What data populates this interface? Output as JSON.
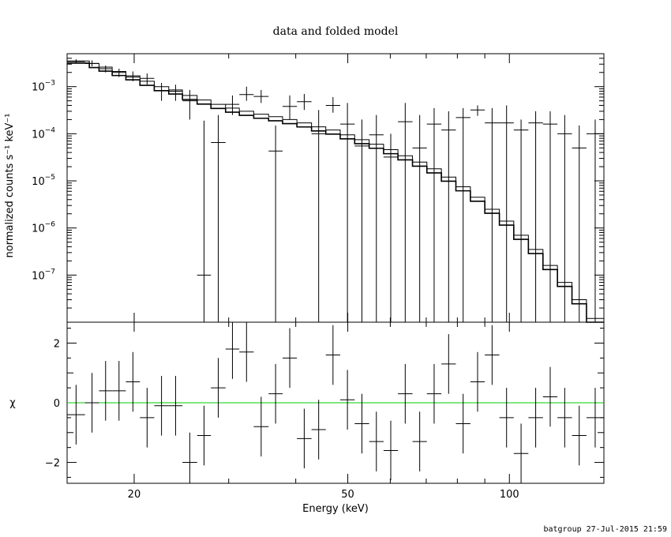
{
  "chart_data": [
    {
      "type": "scatter",
      "title": "data and folded model",
      "xlabel": "Energy (keV)",
      "ylabel": "normalized counts s⁻¹ keV⁻¹",
      "xscale": "log",
      "yscale": "log",
      "xlim": [
        15,
        150
      ],
      "ylim": [
        1e-08,
        0.005
      ],
      "x_ticks": [
        20,
        50,
        100
      ],
      "x_tick_labels": [
        "20",
        "50",
        "100"
      ],
      "y_ticks": [
        {
          "mant": "10",
          "exp": "−3",
          "value": 0.001
        },
        {
          "mant": "10",
          "exp": "−4",
          "value": 0.0001
        },
        {
          "mant": "10",
          "exp": "−5",
          "value": 1e-05
        },
        {
          "mant": "10",
          "exp": "−6",
          "value": 1e-06
        },
        {
          "mant": "10",
          "exp": "−7",
          "value": 1e-07
        }
      ],
      "series": [
        {
          "role": "data",
          "points": [
            [
              15.0,
              16.2,
              0.0034,
              0.0031,
              0.0038
            ],
            [
              16.2,
              17.2,
              0.0031,
              0.0027,
              0.0036
            ],
            [
              17.2,
              18.2,
              0.0024,
              0.002,
              0.0028
            ],
            [
              18.2,
              19.3,
              0.002,
              0.0016,
              0.0024
            ],
            [
              19.3,
              20.5,
              0.0016,
              0.0013,
              0.0021
            ],
            [
              20.5,
              21.8,
              0.0015,
              0.0011,
              0.0019
            ],
            [
              21.8,
              23.2,
              0.00082,
              0.0005,
              0.0012
            ],
            [
              23.2,
              24.6,
              0.0008,
              0.0005,
              0.0011
            ],
            [
              24.6,
              26.2,
              0.0005,
              0.0002,
              0.00085
            ],
            [
              26.2,
              27.8,
              1e-07,
              1e-08,
              0.00019
            ],
            [
              27.8,
              29.6,
              6.5e-05,
              1e-08,
              0.00025
            ],
            [
              29.6,
              31.4,
              0.00042,
              0.00025,
              0.00065
            ],
            [
              31.4,
              33.4,
              0.00068,
              0.0005,
              0.001
            ],
            [
              33.4,
              35.6,
              0.00062,
              0.00045,
              0.00085
            ],
            [
              35.6,
              37.8,
              4.3e-05,
              1e-08,
              0.00015
            ],
            [
              37.8,
              40.2,
              0.00038,
              0.0002,
              0.00065
            ],
            [
              40.2,
              42.8,
              0.00048,
              0.00032,
              0.0007
            ],
            [
              42.8,
              45.5,
              0.0001,
              1e-08,
              0.00032
            ],
            [
              45.5,
              48.4,
              0.0004,
              0.00028,
              0.0006
            ],
            [
              48.4,
              51.5,
              0.00016,
              1e-08,
              0.00045
            ],
            [
              51.5,
              54.8,
              5.5e-05,
              1e-08,
              0.0002
            ],
            [
              54.8,
              58.3,
              9.5e-05,
              1e-08,
              0.00025
            ],
            [
              58.3,
              62.0,
              3.2e-05,
              1e-08,
              0.0001
            ],
            [
              62.0,
              66.0,
              0.00018,
              1e-08,
              0.00045
            ],
            [
              66.0,
              70.2,
              5e-05,
              1e-08,
              0.00025
            ],
            [
              70.2,
              74.7,
              0.00016,
              1e-08,
              0.00035
            ],
            [
              74.7,
              79.5,
              0.00012,
              1e-08,
              0.0003
            ],
            [
              79.5,
              84.6,
              0.00022,
              1e-08,
              0.00035
            ],
            [
              84.6,
              90.0,
              0.00032,
              0.00024,
              0.0004
            ],
            [
              90.0,
              95.8,
              0.00017,
              1e-08,
              0.00035
            ],
            [
              95.8,
              101.9,
              0.00017,
              1e-08,
              0.0004
            ],
            [
              101.9,
              108.5,
              0.00012,
              1e-08,
              0.0002
            ],
            [
              108.5,
              115.5,
              0.00017,
              1e-08,
              0.0003
            ],
            [
              115.5,
              122.9,
              0.00016,
              1e-08,
              0.0003
            ],
            [
              122.9,
              130.8,
              0.0001,
              1e-08,
              0.00025
            ],
            [
              130.8,
              139.2,
              5e-05,
              1e-08,
              0.00015
            ],
            [
              139.2,
              150.0,
              0.0001,
              1e-08,
              0.0002
            ]
          ]
        },
        {
          "role": "model",
          "steps": [
            [
              15.0,
              0.0035
            ],
            [
              16.5,
              0.0031
            ],
            [
              17.2,
              0.0026
            ],
            [
              18.2,
              0.0021
            ],
            [
              19.3,
              0.0017
            ],
            [
              20.5,
              0.0013
            ],
            [
              21.8,
              0.001
            ],
            [
              23.2,
              0.00085
            ],
            [
              24.6,
              0.00065
            ],
            [
              26.2,
              0.00052
            ],
            [
              27.8,
              0.00042
            ],
            [
              29.6,
              0.00035
            ],
            [
              31.4,
              0.0003
            ],
            [
              33.4,
              0.00026
            ],
            [
              35.6,
              0.00023
            ],
            [
              37.8,
              0.0002
            ],
            [
              40.2,
              0.00017
            ],
            [
              42.8,
              0.00014
            ],
            [
              45.5,
              0.00012
            ],
            [
              48.4,
              9.5e-05
            ],
            [
              51.5,
              7.5e-05
            ],
            [
              54.8,
              6e-05
            ],
            [
              58.3,
              4.6e-05
            ],
            [
              62.0,
              3.4e-05
            ],
            [
              66.0,
              2.5e-05
            ],
            [
              70.2,
              1.8e-05
            ],
            [
              74.7,
              1.2e-05
            ],
            [
              79.5,
              7.5e-06
            ],
            [
              84.6,
              4.5e-06
            ],
            [
              90.0,
              2.5e-06
            ],
            [
              95.8,
              1.4e-06
            ],
            [
              101.9,
              7e-07
            ],
            [
              108.5,
              3.5e-07
            ],
            [
              115.5,
              1.6e-07
            ],
            [
              122.9,
              7e-08
            ],
            [
              130.8,
              3e-08
            ],
            [
              139.2,
              1.2e-08
            ],
            [
              150.0,
              1.2e-08
            ]
          ]
        }
      ]
    },
    {
      "type": "scatter",
      "xlabel": "Energy (keV)",
      "ylabel": "χ",
      "xscale": "log",
      "xlim": [
        15,
        150
      ],
      "ylim": [
        -2.7,
        2.7
      ],
      "x_ticks": [
        20,
        50,
        100
      ],
      "x_tick_labels": [
        "20",
        "50",
        "100"
      ],
      "y_ticks": [
        -2,
        0,
        2
      ],
      "y_tick_labels": [
        "−2",
        "0",
        "2"
      ],
      "reference_line": {
        "y": 0,
        "color": "#00cc00"
      },
      "series": [
        {
          "role": "residuals",
          "points": [
            [
              15.0,
              16.2,
              -0.4,
              -1.4,
              0.6
            ],
            [
              16.2,
              17.2,
              0.0,
              -1.0,
              1.0
            ],
            [
              17.2,
              18.2,
              0.4,
              -0.6,
              1.4
            ],
            [
              18.2,
              19.3,
              0.4,
              -0.6,
              1.4
            ],
            [
              19.3,
              20.5,
              0.7,
              -0.3,
              1.7
            ],
            [
              20.5,
              21.8,
              -0.5,
              -1.5,
              0.5
            ],
            [
              21.8,
              23.2,
              -0.1,
              -1.1,
              0.9
            ],
            [
              23.2,
              24.6,
              -0.1,
              -1.1,
              0.9
            ],
            [
              24.6,
              26.2,
              -2.0,
              -2.7,
              -1.0
            ],
            [
              26.2,
              27.8,
              -1.1,
              -2.1,
              -0.1
            ],
            [
              27.8,
              29.6,
              0.5,
              -0.5,
              1.5
            ],
            [
              29.6,
              31.4,
              1.8,
              0.8,
              2.7
            ],
            [
              31.4,
              33.4,
              1.7,
              0.7,
              2.7
            ],
            [
              33.4,
              35.6,
              -0.8,
              -1.8,
              0.2
            ],
            [
              35.6,
              37.8,
              0.3,
              -0.7,
              1.3
            ],
            [
              37.8,
              40.2,
              1.5,
              0.5,
              2.5
            ],
            [
              40.2,
              42.8,
              -1.2,
              -2.2,
              -0.2
            ],
            [
              42.8,
              45.5,
              -0.9,
              -1.9,
              0.1
            ],
            [
              45.5,
              48.4,
              1.6,
              0.6,
              2.6
            ],
            [
              48.4,
              51.5,
              0.1,
              -0.9,
              1.1
            ],
            [
              51.5,
              54.8,
              -0.7,
              -1.7,
              0.3
            ],
            [
              54.8,
              58.3,
              -1.3,
              -2.3,
              -0.3
            ],
            [
              58.3,
              62.0,
              -1.6,
              -2.6,
              -0.6
            ],
            [
              62.0,
              66.0,
              0.3,
              -0.7,
              1.3
            ],
            [
              66.0,
              70.2,
              -1.3,
              -2.3,
              -0.3
            ],
            [
              70.2,
              74.7,
              0.3,
              -0.7,
              1.3
            ],
            [
              74.7,
              79.5,
              1.3,
              0.3,
              2.3
            ],
            [
              79.5,
              84.6,
              -0.7,
              -1.7,
              0.3
            ],
            [
              84.6,
              90.0,
              0.7,
              -0.3,
              1.7
            ],
            [
              90.0,
              95.8,
              1.6,
              0.6,
              2.6
            ],
            [
              95.8,
              101.9,
              -0.5,
              -1.5,
              0.5
            ],
            [
              101.9,
              108.5,
              -1.7,
              -2.7,
              -0.7
            ],
            [
              108.5,
              115.5,
              -0.5,
              -1.5,
              0.5
            ],
            [
              115.5,
              122.9,
              0.2,
              -0.8,
              1.2
            ],
            [
              122.9,
              130.8,
              -0.5,
              -1.5,
              0.5
            ],
            [
              130.8,
              139.2,
              -1.1,
              -2.1,
              -0.1
            ],
            [
              139.2,
              150.0,
              -0.5,
              -1.5,
              0.5
            ]
          ]
        }
      ]
    }
  ],
  "footer": "batgroup 27-Jul-2015 21:59"
}
